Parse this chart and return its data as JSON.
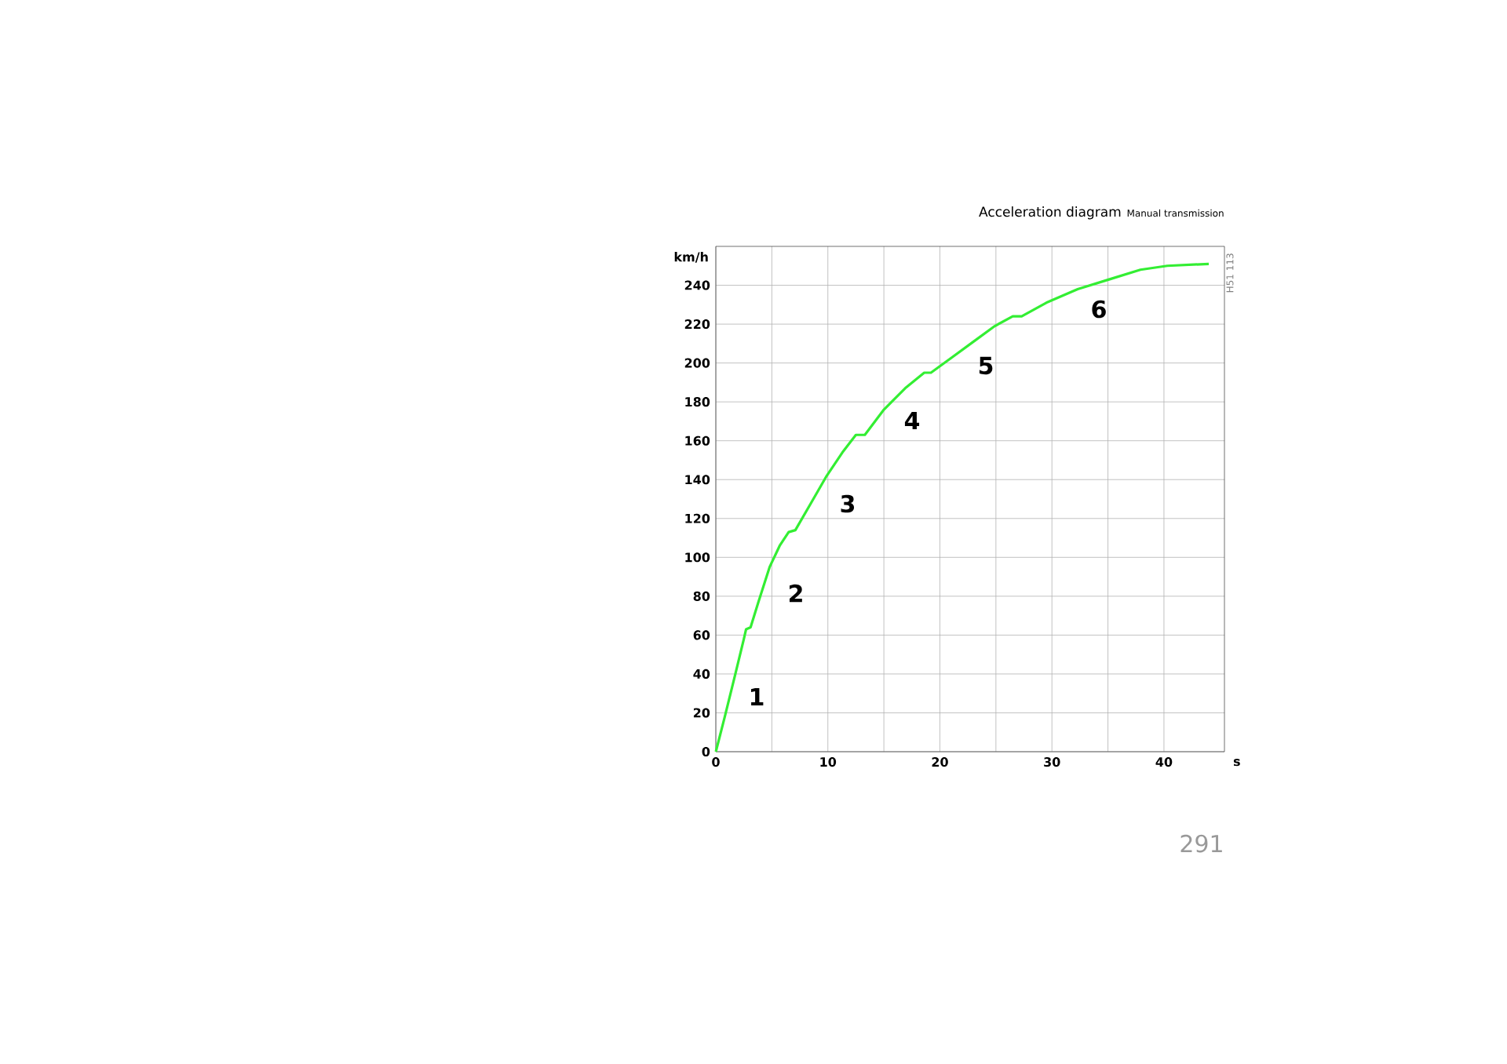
{
  "chart_data": {
    "type": "line",
    "title": "Acceleration diagram",
    "subtitle": "Manual transmission",
    "xlabel": "s",
    "ylabel": "km/h",
    "x": [
      0,
      0.8,
      1.7,
      2.5,
      2.7,
      3.1,
      3.8,
      4.8,
      5.7,
      6.5,
      7.1,
      8.5,
      9.9,
      11.3,
      12.5,
      13.3,
      15,
      16.9,
      18.6,
      19.2,
      21.1,
      23,
      24.9,
      26.5,
      27.3,
      29.5,
      32.3,
      35.1,
      37.9,
      40.3,
      44
    ],
    "series": [
      {
        "color": "#33ee33",
        "values": [
          0,
          18,
          39,
          58,
          63,
          64,
          77,
          95,
          106,
          113,
          114,
          128,
          142,
          154,
          163,
          163,
          176,
          187,
          195,
          195,
          203,
          211,
          219,
          224,
          224,
          231,
          238,
          243,
          248,
          250,
          251
        ]
      }
    ],
    "xlim": [
      0,
      45.4
    ],
    "ylim": [
      0,
      260
    ],
    "xticks": [
      0,
      {
        "value": 5,
        "label": null
      },
      10,
      {
        "value": 15,
        "label": null
      },
      20,
      {
        "value": 25,
        "label": null
      },
      30,
      {
        "value": 35,
        "label": null
      },
      40
    ],
    "yticks": [
      0,
      20,
      40,
      60,
      80,
      100,
      120,
      140,
      160,
      180,
      200,
      220,
      240
    ],
    "grid": true,
    "annotations": [
      "1",
      "2",
      "3",
      "4",
      "5",
      "6",
      "H51 113",
      "291"
    ]
  }
}
